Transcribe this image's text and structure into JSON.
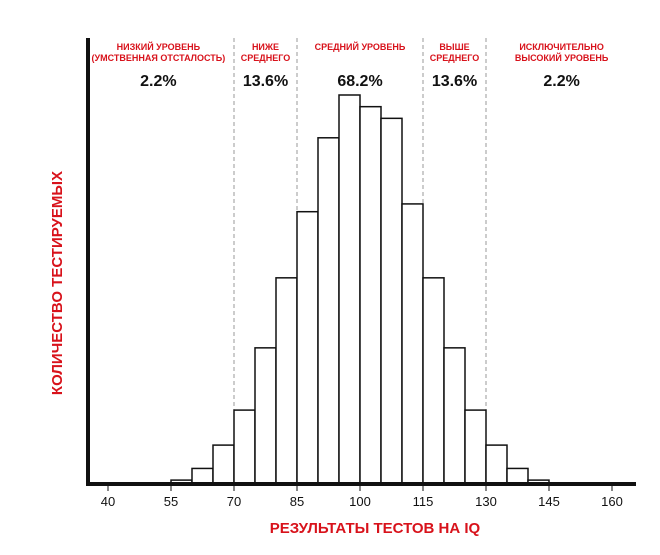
{
  "chart_data": {
    "type": "bar",
    "xlabel": "РЕЗУЛЬТАТЫ ТЕСТОВ НА IQ",
    "ylabel": "КОЛИЧЕСТВО ТЕСТИРУЕМЫХ",
    "x_ticks": [
      40,
      55,
      70,
      85,
      100,
      115,
      130,
      145,
      160
    ],
    "xlim": [
      35,
      165
    ],
    "ylim": [
      0,
      100
    ],
    "bin_width": 5,
    "bins": [
      {
        "start": 55,
        "value": 1
      },
      {
        "start": 60,
        "value": 4
      },
      {
        "start": 65,
        "value": 10
      },
      {
        "start": 70,
        "value": 19
      },
      {
        "start": 75,
        "value": 35
      },
      {
        "start": 80,
        "value": 53
      },
      {
        "start": 85,
        "value": 70
      },
      {
        "start": 90,
        "value": 89
      },
      {
        "start": 95,
        "value": 100
      },
      {
        "start": 100,
        "value": 97
      },
      {
        "start": 105,
        "value": 94
      },
      {
        "start": 110,
        "value": 72
      },
      {
        "start": 115,
        "value": 53
      },
      {
        "start": 120,
        "value": 35
      },
      {
        "start": 125,
        "value": 19
      },
      {
        "start": 130,
        "value": 10
      },
      {
        "start": 135,
        "value": 4
      },
      {
        "start": 140,
        "value": 1
      }
    ],
    "divisions": [
      70,
      85,
      115,
      130
    ],
    "bands": [
      {
        "label_lines": [
          "НИЗКИЙ УРОВЕНЬ",
          "(УМСТВЕННАЯ ОТСТАЛОСТЬ)"
        ],
        "percent": "2.2%",
        "center": 52
      },
      {
        "label_lines": [
          "НИЖЕ",
          "СРЕДНЕГО"
        ],
        "percent": "13.6%",
        "center": 77.5
      },
      {
        "label_lines": [
          "СРЕДНИЙ УРОВЕНЬ"
        ],
        "percent": "68.2%",
        "center": 100
      },
      {
        "label_lines": [
          "ВЫШЕ",
          "СРЕДНЕГО"
        ],
        "percent": "13.6%",
        "center": 122.5
      },
      {
        "label_lines": [
          "ИСКЛЮЧИТЕЛЬНО",
          "ВЫСОКИЙ УРОВЕНЬ"
        ],
        "percent": "2.2%",
        "center": 148
      }
    ],
    "colors": {
      "bar_fill": "#ffffff",
      "bar_stroke": "#111111",
      "axis": "#111111",
      "divider": "#9a9a9a",
      "accent": "#d8121b"
    }
  }
}
